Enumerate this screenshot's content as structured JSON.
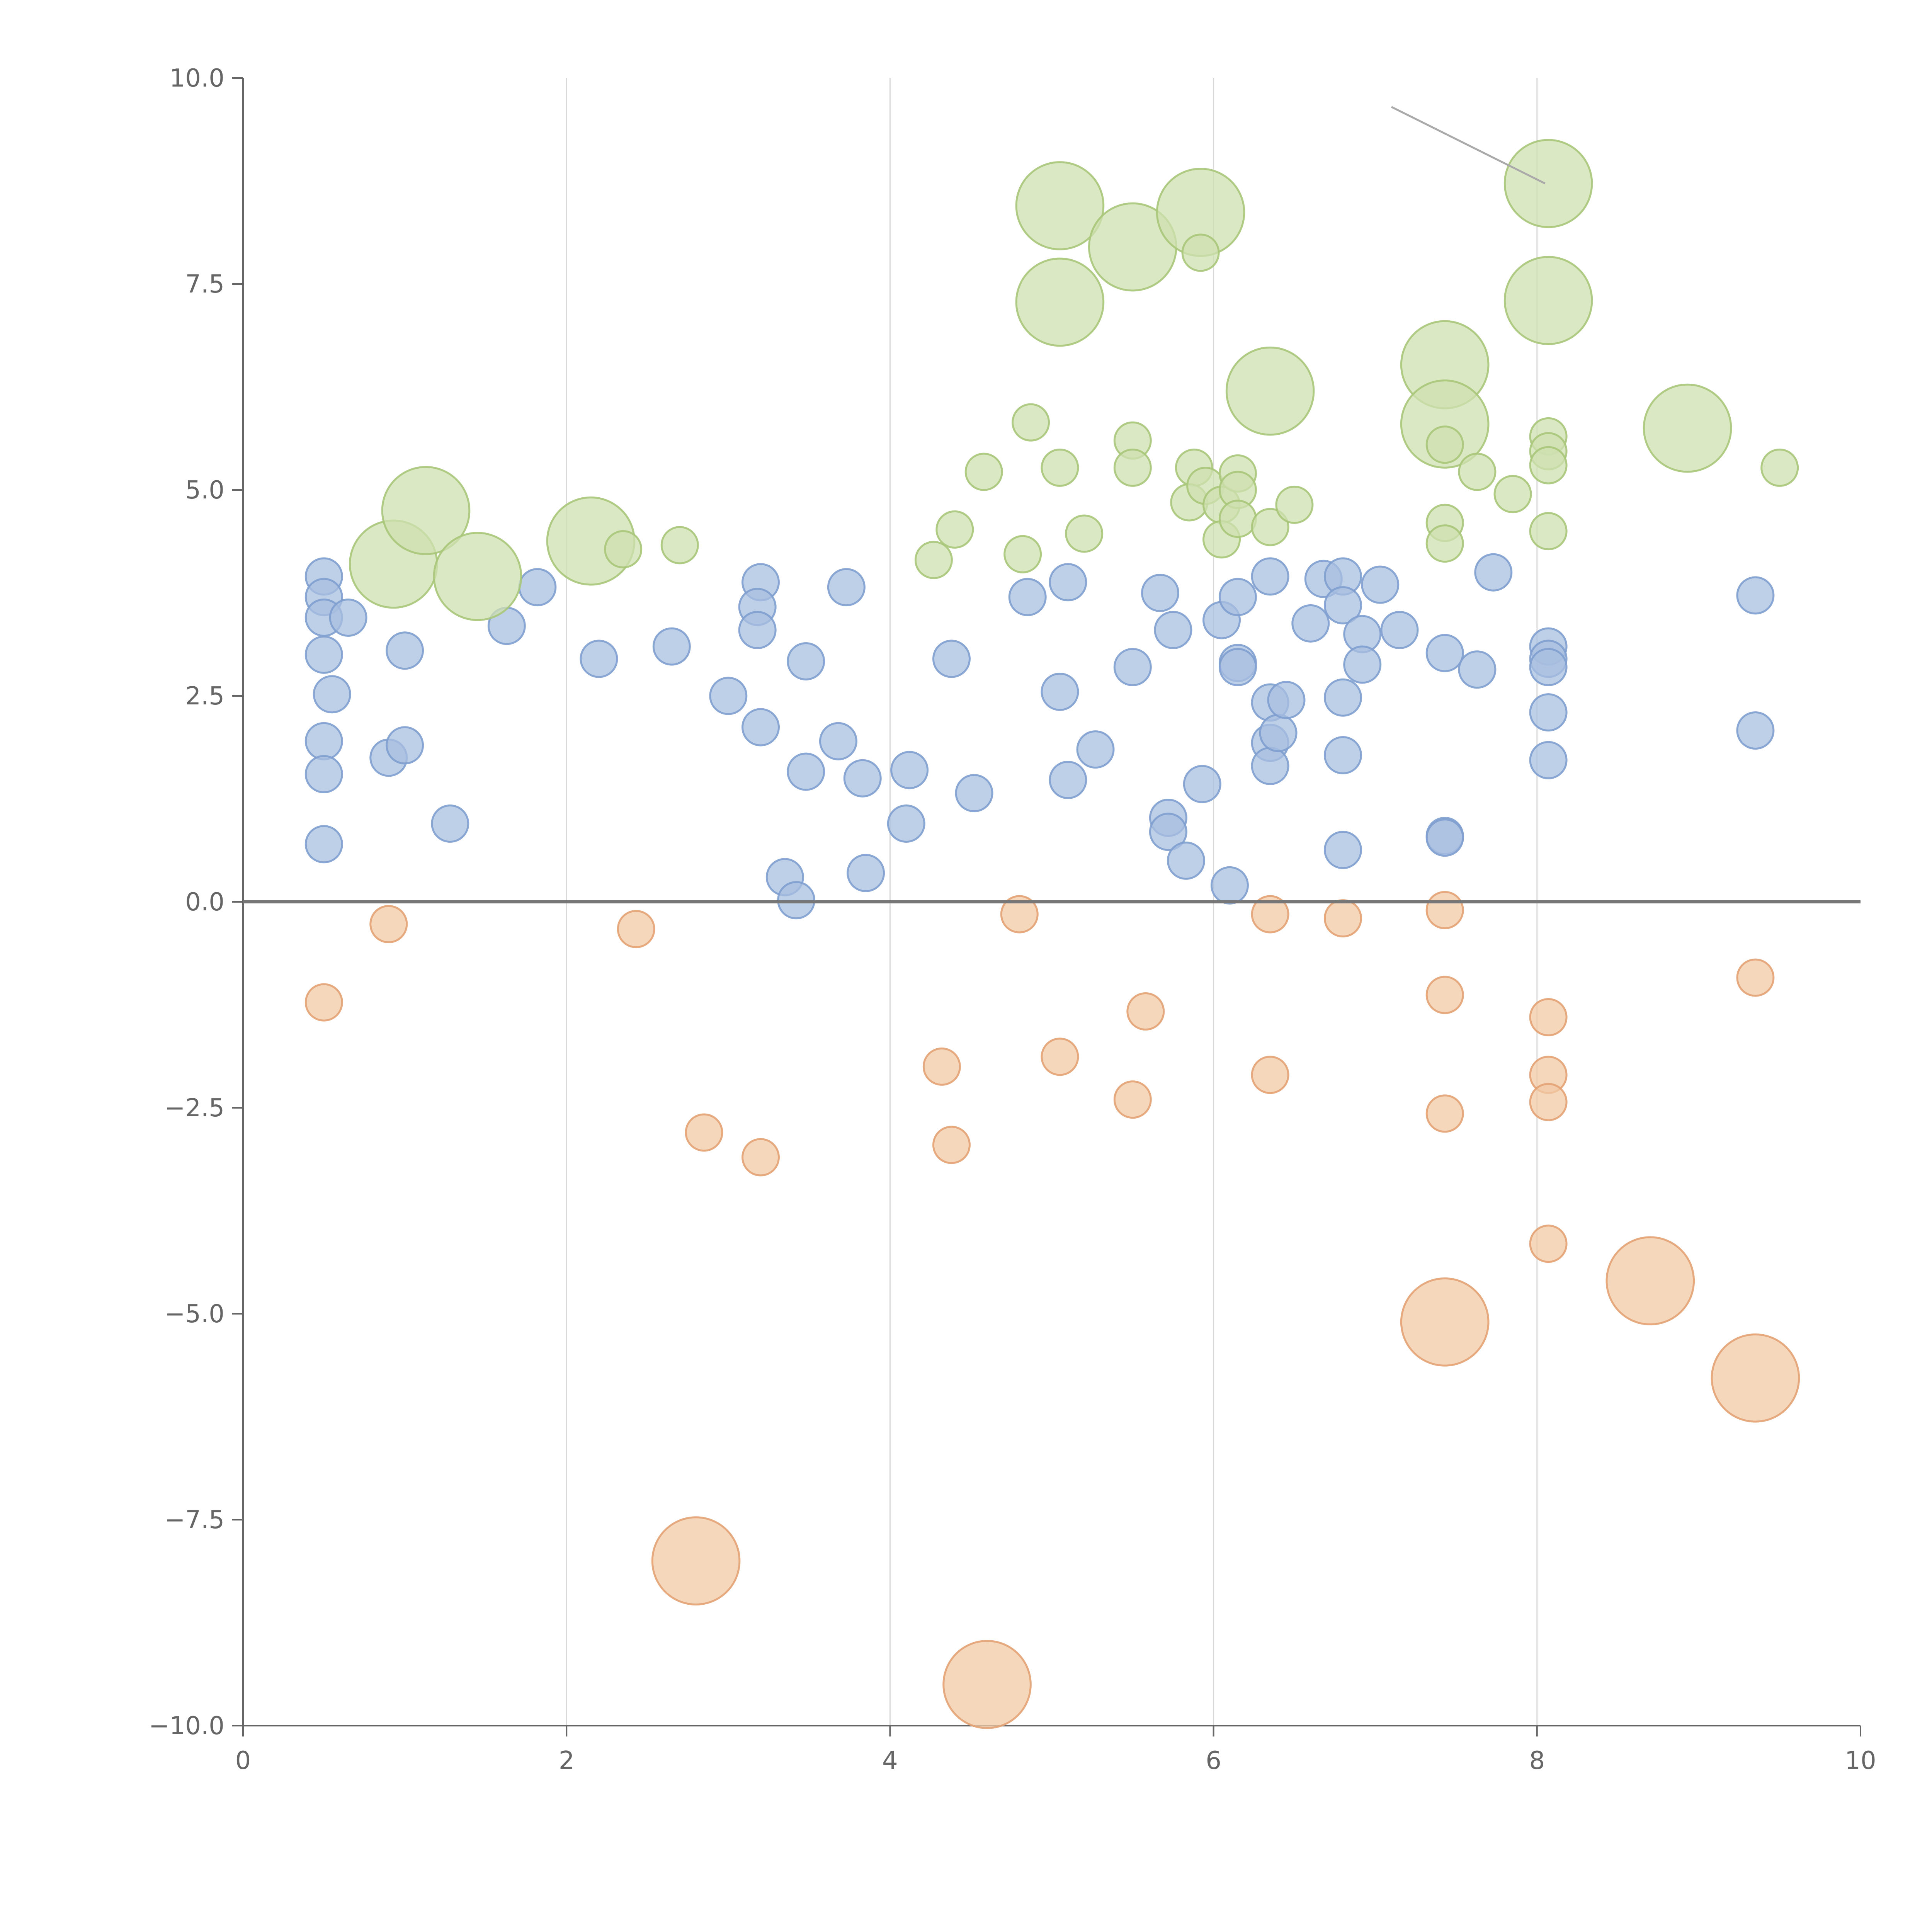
{
  "chart_data": {
    "type": "scatter",
    "subtype": "bubble",
    "title": "",
    "xlabel": "",
    "ylabel": "",
    "xlim": [
      0,
      10
    ],
    "ylim": [
      -10,
      10
    ],
    "x_ticks": [
      0,
      2,
      4,
      6,
      8,
      10
    ],
    "x_tick_labels": [
      "0",
      "2",
      "4",
      "6",
      "8",
      "10"
    ],
    "y_ticks": [
      10,
      7.5,
      5,
      2.5,
      0,
      -2.5,
      -5,
      -7.5,
      -10
    ],
    "y_tick_labels": [
      "10.0",
      "7.5",
      "5.0",
      "2.5",
      "0.0",
      "−2.5",
      "−5.0",
      "−7.5",
      "−10.0"
    ],
    "vertical_grid_at": [
      2,
      4,
      6,
      8
    ],
    "reference_line_y": 0,
    "colors": {
      "blue_fill": "#a8bfe0",
      "blue_stroke": "#7f9fcf",
      "green_fill": "#cfe0b0",
      "green_stroke": "#a9c77a",
      "orange_fill": "#f2c9a6",
      "orange_stroke": "#e3a273",
      "annotation_line": "#aaaaaa"
    },
    "annotation_segments": [
      {
        "x1": 7.1,
        "y1": 9.65,
        "x2": 8.05,
        "y2": 8.72
      }
    ],
    "series": [
      {
        "name": "blue",
        "fill_key": "blue_fill",
        "stroke_key": "blue_stroke",
        "opacity": 0.75,
        "points": [
          [
            0.5,
            3.95,
            1
          ],
          [
            0.5,
            3.7,
            1
          ],
          [
            0.5,
            3.45,
            1
          ],
          [
            0.65,
            3.45,
            1
          ],
          [
            0.5,
            3.0,
            1
          ],
          [
            0.55,
            2.52,
            1
          ],
          [
            0.5,
            1.95,
            1
          ],
          [
            0.5,
            1.55,
            1
          ],
          [
            0.5,
            0.7,
            1
          ],
          [
            0.9,
            1.75,
            1
          ],
          [
            1.0,
            1.9,
            1
          ],
          [
            1.0,
            3.05,
            1
          ],
          [
            1.28,
            0.95,
            1
          ],
          [
            1.63,
            3.35,
            1
          ],
          [
            1.82,
            3.82,
            1
          ],
          [
            2.2,
            2.95,
            1
          ],
          [
            2.65,
            3.1,
            1
          ],
          [
            3.0,
            2.5,
            1
          ],
          [
            3.2,
            3.88,
            1
          ],
          [
            3.18,
            3.58,
            1
          ],
          [
            3.18,
            3.3,
            1
          ],
          [
            3.2,
            2.12,
            1
          ],
          [
            3.35,
            0.3,
            1
          ],
          [
            3.42,
            0.02,
            1
          ],
          [
            3.48,
            2.92,
            1
          ],
          [
            3.48,
            1.58,
            1
          ],
          [
            3.68,
            1.95,
            1
          ],
          [
            3.73,
            3.82,
            1
          ],
          [
            3.83,
            1.5,
            1
          ],
          [
            3.85,
            0.35,
            1
          ],
          [
            4.1,
            0.95,
            1
          ],
          [
            4.12,
            1.6,
            1
          ],
          [
            4.38,
            2.95,
            1
          ],
          [
            4.52,
            1.32,
            1
          ],
          [
            4.85,
            3.7,
            1
          ],
          [
            5.05,
            2.55,
            1
          ],
          [
            5.1,
            3.88,
            1
          ],
          [
            5.1,
            1.48,
            1
          ],
          [
            5.27,
            1.85,
            1
          ],
          [
            5.5,
            2.85,
            1
          ],
          [
            5.67,
            3.75,
            1
          ],
          [
            5.75,
            3.3,
            1
          ],
          [
            5.72,
            1.02,
            1
          ],
          [
            5.72,
            0.85,
            1
          ],
          [
            5.83,
            0.5,
            1
          ],
          [
            5.93,
            1.43,
            1
          ],
          [
            6.05,
            3.42,
            1
          ],
          [
            6.15,
            3.7,
            1
          ],
          [
            6.15,
            2.9,
            1
          ],
          [
            6.15,
            2.85,
            1
          ],
          [
            6.1,
            0.2,
            1
          ],
          [
            6.35,
            3.95,
            1
          ],
          [
            6.35,
            2.42,
            1
          ],
          [
            6.35,
            1.93,
            1
          ],
          [
            6.35,
            1.65,
            1
          ],
          [
            6.4,
            2.05,
            1
          ],
          [
            6.45,
            2.45,
            1
          ],
          [
            6.6,
            3.38,
            1
          ],
          [
            6.68,
            3.92,
            1
          ],
          [
            6.8,
            3.95,
            1
          ],
          [
            6.8,
            3.6,
            1
          ],
          [
            6.8,
            2.48,
            1
          ],
          [
            6.8,
            1.78,
            1
          ],
          [
            6.8,
            0.63,
            1
          ],
          [
            6.92,
            3.25,
            1
          ],
          [
            6.92,
            2.88,
            1
          ],
          [
            7.03,
            3.85,
            1
          ],
          [
            7.15,
            3.3,
            1
          ],
          [
            7.43,
            3.02,
            1
          ],
          [
            7.43,
            0.8,
            1
          ],
          [
            7.43,
            0.78,
            1
          ],
          [
            7.63,
            2.82,
            1
          ],
          [
            7.73,
            4.0,
            1
          ],
          [
            8.07,
            3.1,
            1
          ],
          [
            8.07,
            2.95,
            1
          ],
          [
            8.07,
            2.85,
            1
          ],
          [
            8.07,
            2.3,
            1
          ],
          [
            8.07,
            1.72,
            1
          ],
          [
            9.35,
            3.72,
            1
          ],
          [
            9.35,
            2.08,
            1
          ]
        ]
      },
      {
        "name": "green",
        "fill_key": "green_fill",
        "stroke_key": "green_stroke",
        "opacity": 0.75,
        "points": [
          [
            0.93,
            4.1,
            2.4
          ],
          [
            1.13,
            4.75,
            2.4
          ],
          [
            1.45,
            3.95,
            2.4
          ],
          [
            2.15,
            4.38,
            2.4
          ],
          [
            2.35,
            4.28,
            1
          ],
          [
            2.7,
            4.33,
            1
          ],
          [
            4.27,
            4.15,
            1
          ],
          [
            4.4,
            4.52,
            1
          ],
          [
            4.58,
            5.22,
            1
          ],
          [
            4.82,
            4.22,
            1
          ],
          [
            4.87,
            5.82,
            1
          ],
          [
            5.05,
            8.45,
            2.4
          ],
          [
            5.05,
            7.28,
            2.4
          ],
          [
            5.05,
            5.27,
            1
          ],
          [
            5.2,
            4.47,
            1
          ],
          [
            5.5,
            7.95,
            2.4
          ],
          [
            5.5,
            5.6,
            1
          ],
          [
            5.5,
            5.27,
            1
          ],
          [
            5.92,
            8.37,
            2.4
          ],
          [
            5.92,
            7.88,
            1
          ],
          [
            5.88,
            5.27,
            1
          ],
          [
            5.85,
            4.85,
            1
          ],
          [
            5.95,
            5.05,
            1
          ],
          [
            6.05,
            4.82,
            1
          ],
          [
            6.05,
            4.4,
            1
          ],
          [
            6.15,
            5.2,
            1
          ],
          [
            6.15,
            5.0,
            1
          ],
          [
            6.15,
            4.65,
            1
          ],
          [
            6.35,
            6.2,
            2.4
          ],
          [
            6.35,
            4.55,
            1
          ],
          [
            6.5,
            4.82,
            1
          ],
          [
            7.43,
            6.52,
            2.4
          ],
          [
            7.43,
            5.8,
            2.4
          ],
          [
            7.43,
            5.55,
            1
          ],
          [
            7.43,
            4.6,
            1
          ],
          [
            7.43,
            4.35,
            1
          ],
          [
            7.63,
            5.22,
            1
          ],
          [
            7.85,
            4.95,
            1
          ],
          [
            8.07,
            8.72,
            2.4
          ],
          [
            8.07,
            7.3,
            2.4
          ],
          [
            8.07,
            5.65,
            1
          ],
          [
            8.07,
            5.47,
            1
          ],
          [
            8.07,
            5.3,
            1
          ],
          [
            8.07,
            4.5,
            1
          ],
          [
            8.93,
            5.75,
            2.4
          ],
          [
            9.5,
            5.27,
            1
          ]
        ]
      },
      {
        "name": "orange",
        "fill_key": "orange_fill",
        "stroke_key": "orange_stroke",
        "opacity": 0.75,
        "points": [
          [
            0.5,
            -1.22,
            1
          ],
          [
            0.9,
            -0.27,
            1
          ],
          [
            2.43,
            -0.33,
            1
          ],
          [
            2.85,
            -2.8,
            1
          ],
          [
            3.2,
            -3.1,
            1
          ],
          [
            4.32,
            -2.0,
            1
          ],
          [
            4.38,
            -2.95,
            1
          ],
          [
            4.8,
            -0.15,
            1
          ],
          [
            5.05,
            -1.88,
            1
          ],
          [
            5.5,
            -2.4,
            1
          ],
          [
            5.58,
            -1.33,
            1
          ],
          [
            6.35,
            -0.15,
            1
          ],
          [
            6.35,
            -2.1,
            1
          ],
          [
            6.8,
            -0.2,
            1
          ],
          [
            7.43,
            -0.1,
            1
          ],
          [
            7.43,
            -1.13,
            1
          ],
          [
            7.43,
            -2.57,
            1
          ],
          [
            8.07,
            -1.4,
            1
          ],
          [
            8.07,
            -2.1,
            1
          ],
          [
            8.07,
            -2.43,
            1
          ],
          [
            8.07,
            -4.15,
            1
          ],
          [
            9.35,
            -0.92,
            1
          ],
          [
            2.8,
            -8.0,
            2.4
          ],
          [
            4.6,
            -9.5,
            2.4
          ],
          [
            7.43,
            -5.1,
            2.4
          ],
          [
            8.7,
            -4.6,
            2.4
          ],
          [
            9.35,
            -5.78,
            2.4
          ]
        ]
      }
    ]
  }
}
